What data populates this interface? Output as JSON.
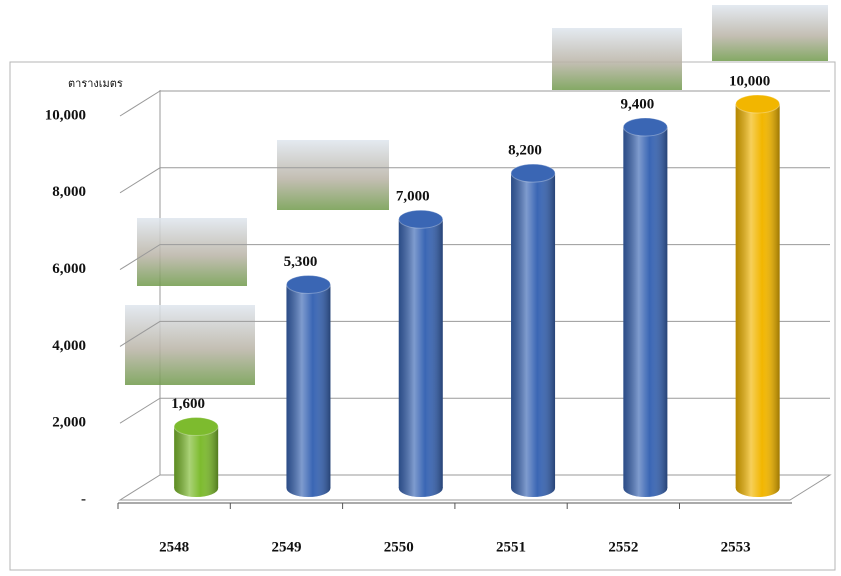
{
  "chart_data": {
    "type": "bar",
    "y_label": "ตารางเมตร",
    "categories": [
      "2548",
      "2549",
      "2550",
      "2551",
      "2552",
      "2553"
    ],
    "values": [
      1600,
      5300,
      7000,
      8200,
      9400,
      10000
    ],
    "value_labels": [
      "1,600",
      "5,300",
      "7,000",
      "8,200",
      "9,400",
      "10,000"
    ],
    "colors": [
      "#7dbb2e",
      "#3a66b4",
      "#3a66b4",
      "#3a66b4",
      "#3a66b4",
      "#f2b600"
    ],
    "ylim": [
      0,
      10000
    ],
    "yticks": [
      {
        "value": 0,
        "label": "-"
      },
      {
        "value": 2000,
        "label": "2,000"
      },
      {
        "value": 4000,
        "label": "4,000"
      },
      {
        "value": 6000,
        "label": "6,000"
      },
      {
        "value": 8000,
        "label": "8,000"
      },
      {
        "value": 10000,
        "label": "10,000"
      }
    ],
    "grid": true
  }
}
